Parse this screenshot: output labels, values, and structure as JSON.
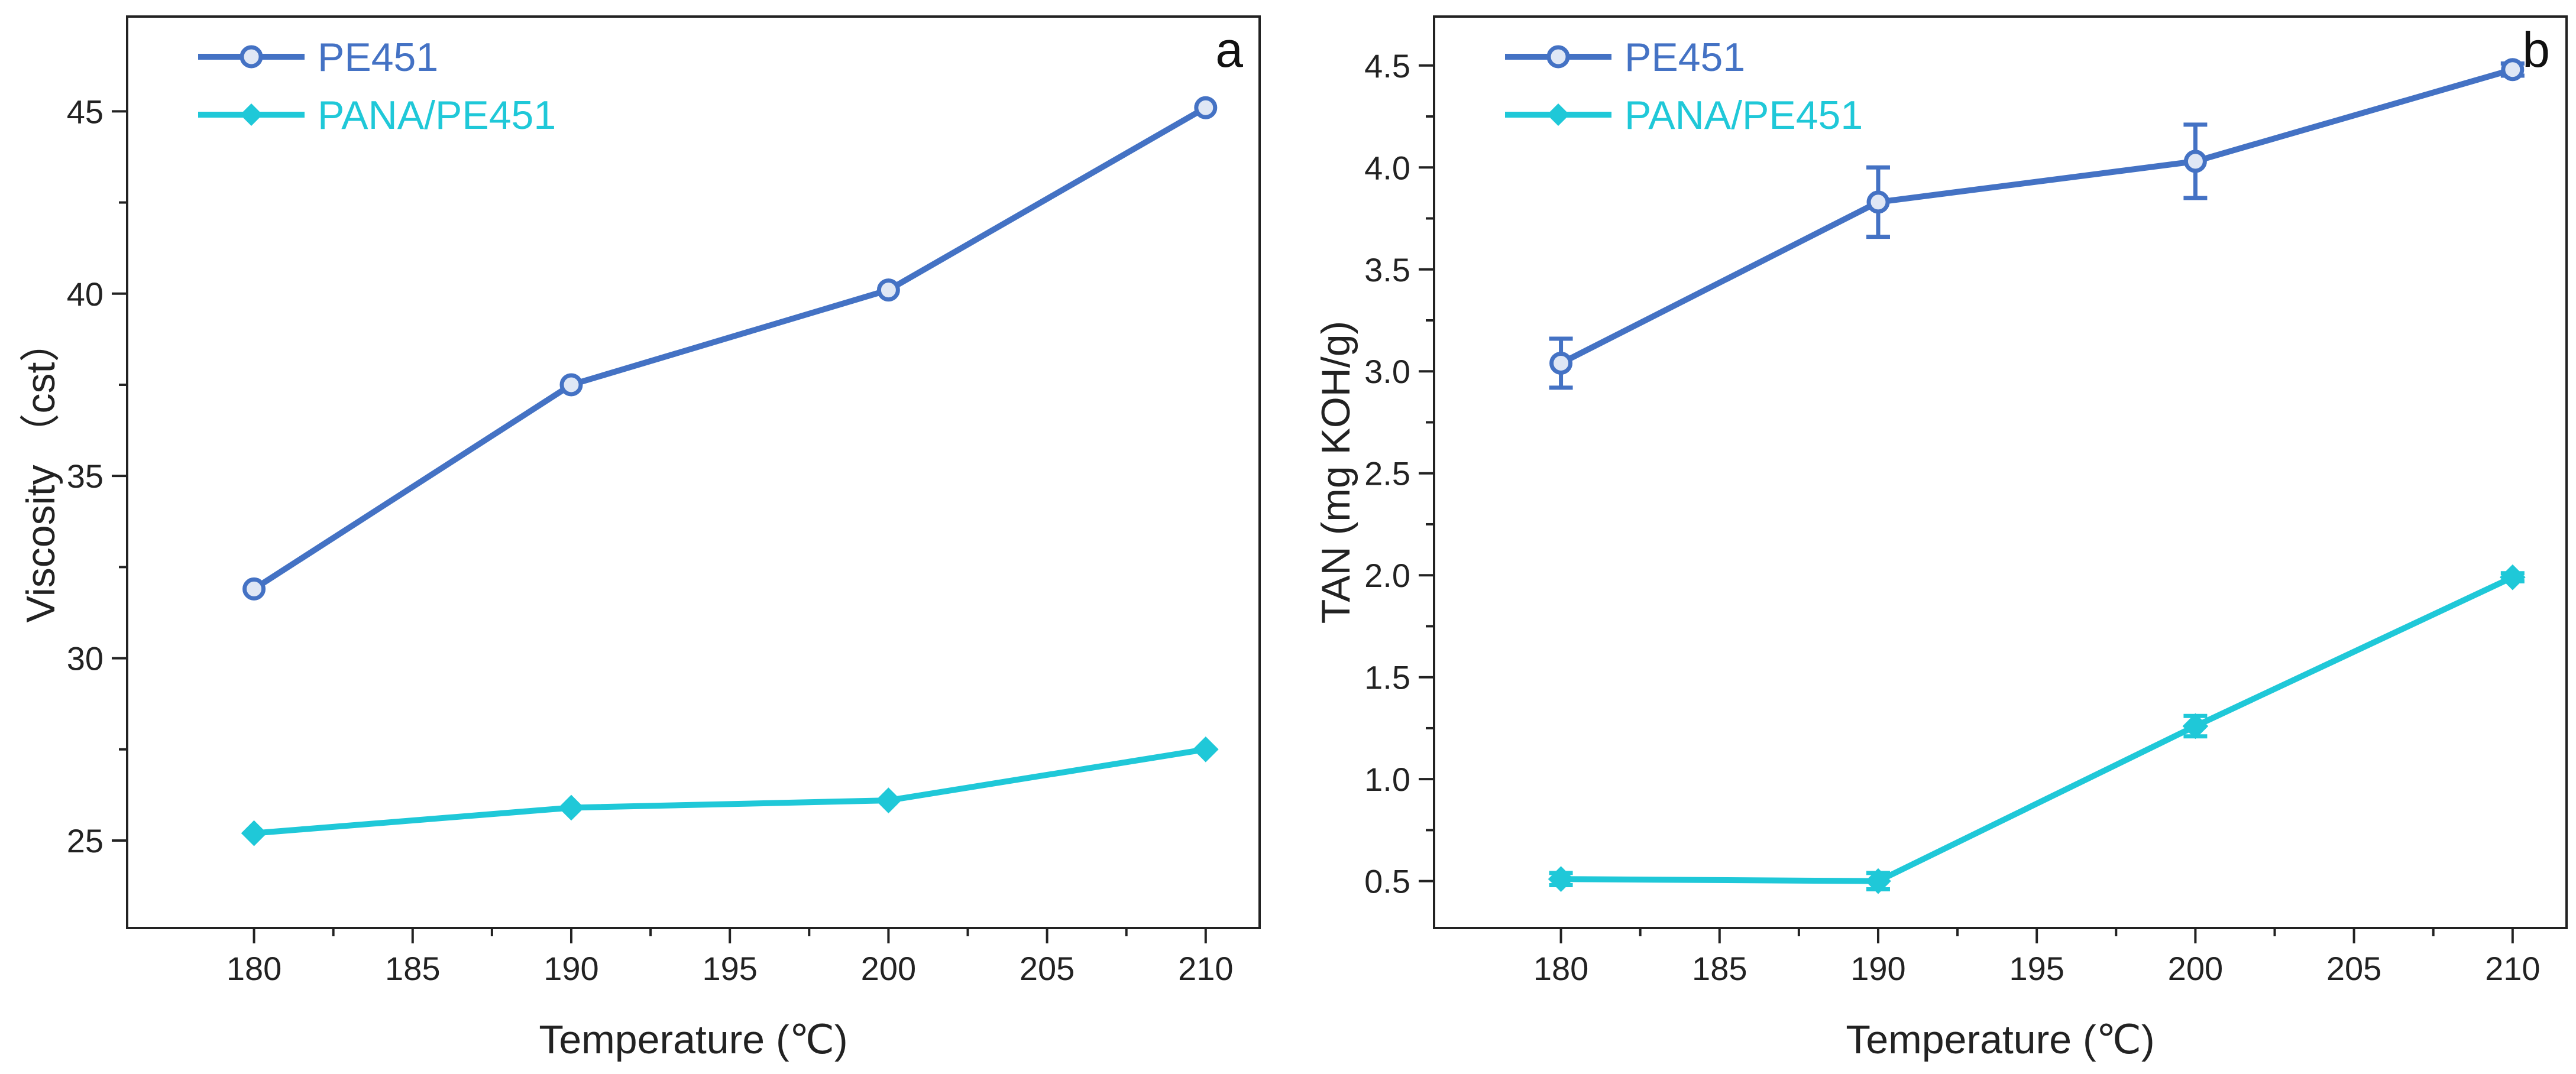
{
  "chart_data": [
    {
      "type": "line",
      "panel_label": "a",
      "xlabel": "Temperature (℃)",
      "ylabel": "Viscosity （cst）",
      "x": [
        180,
        190,
        200,
        210
      ],
      "xlim": [
        176,
        211.7
      ],
      "ylim": [
        22.6,
        47.6
      ],
      "xticks": [
        180,
        185,
        190,
        195,
        200,
        205,
        210
      ],
      "yticks": [
        25,
        30,
        35,
        40,
        45
      ],
      "legend_position": "top-left",
      "series": [
        {
          "name": "PE451",
          "color": "#4472c4",
          "values": [
            31.9,
            37.5,
            40.1,
            45.1
          ]
        },
        {
          "name": "PANA/PE451",
          "color": "#1fc8d8",
          "values": [
            25.2,
            25.9,
            26.1,
            27.5
          ]
        }
      ]
    },
    {
      "type": "line",
      "panel_label": "b",
      "xlabel": "Temperature (℃)",
      "ylabel": "TAN (mg KOH/g)",
      "x": [
        180,
        190,
        200,
        210
      ],
      "xlim": [
        176,
        211.7
      ],
      "ylim": [
        0.27,
        4.74
      ],
      "xticks": [
        180,
        185,
        190,
        195,
        200,
        205,
        210
      ],
      "yticks": [
        0.5,
        1.0,
        1.5,
        2.0,
        2.5,
        3.0,
        3.5,
        4.0,
        4.5
      ],
      "ytick_labels": [
        "0.5",
        "1.0",
        "1.5",
        "2.0",
        "2.5",
        "3.0",
        "3.5",
        "4.0",
        "4.5"
      ],
      "legend_position": "top-left",
      "series": [
        {
          "name": "PE451",
          "color": "#4472c4",
          "values": [
            3.04,
            3.83,
            4.03,
            4.48
          ],
          "errors": [
            0.12,
            0.17,
            0.18,
            0.03
          ]
        },
        {
          "name": "PANA/PE451",
          "color": "#1fc8d8",
          "values": [
            0.51,
            0.5,
            1.26,
            1.99
          ],
          "errors": [
            0.03,
            0.04,
            0.05,
            0.02
          ]
        }
      ]
    }
  ]
}
